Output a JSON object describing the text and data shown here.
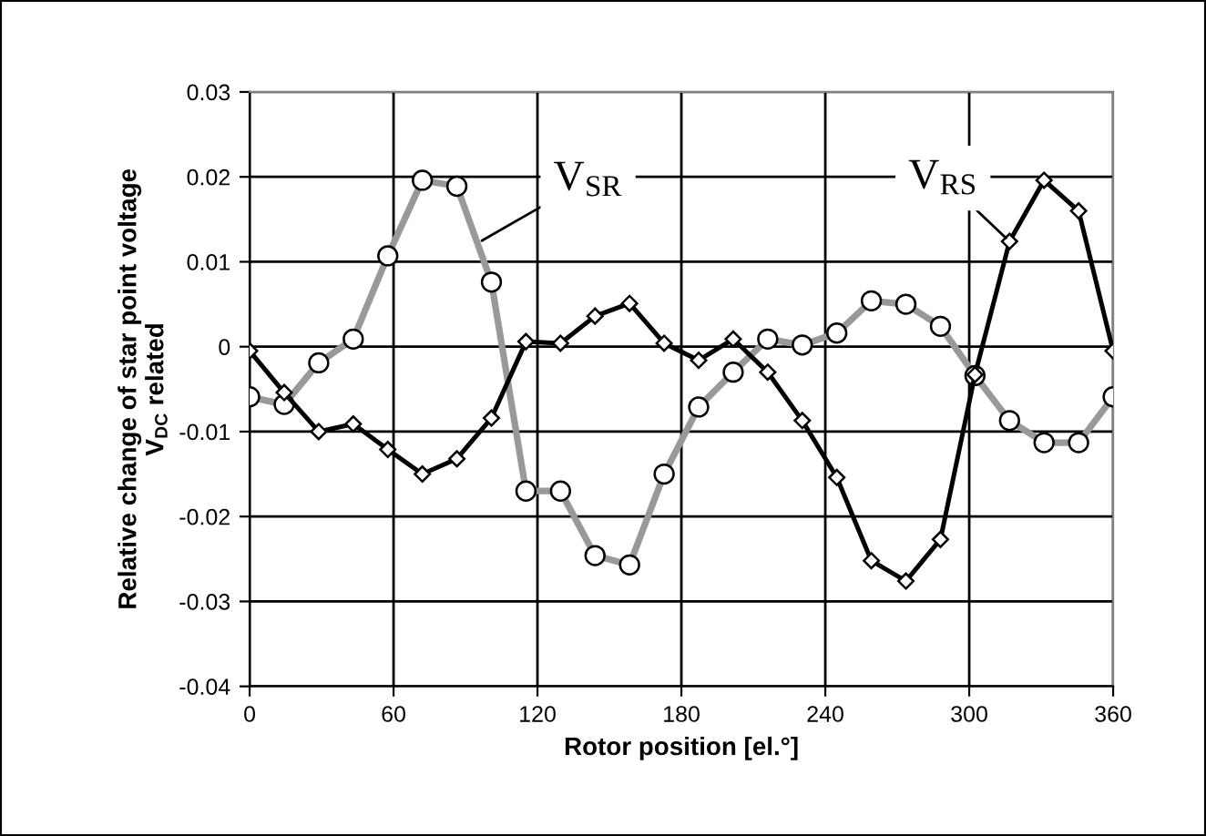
{
  "chart_data": {
    "type": "line",
    "xlabel": "Rotor position [el.°]",
    "ylabel": "Relative change of star point voltage\nV$_{DC}$ related",
    "xlim": [
      0,
      360
    ],
    "xticks": [
      0,
      60,
      120,
      180,
      240,
      300,
      360
    ],
    "ylim": [
      -0.04,
      0.03
    ],
    "yticks": [
      -0.04,
      -0.03,
      -0.02,
      -0.01,
      0,
      0.01,
      0.02,
      0.03
    ],
    "grid": true,
    "legend": false,
    "series": [
      {
        "color": "#999999",
        "marker": "circle",
        "x": [
          0,
          14.4,
          28.8,
          43.2,
          57.6,
          72,
          86.4,
          100.8,
          115.2,
          129.6,
          144,
          158.4,
          172.8,
          187.2,
          201.6,
          216,
          230.4,
          244.8,
          259.2,
          273.6,
          288,
          302.4,
          316.8,
          331.2,
          345.6,
          360
        ],
        "values": [
          -0.0059,
          -0.0068,
          -0.0019,
          0.0009,
          0.0107,
          0.0196,
          0.0189,
          0.0076,
          -0.017,
          -0.017,
          -0.0246,
          -0.0257,
          -0.015,
          -0.0071,
          -0.003,
          0.0009,
          0.0002,
          0.0016,
          0.0054,
          0.005,
          0.0024,
          -0.0034,
          -0.0087,
          -0.0113,
          -0.0113,
          -0.0059
        ]
      },
      {
        "color": "#000000",
        "marker": "diamond",
        "x": [
          0,
          14.4,
          28.8,
          43.2,
          57.6,
          72,
          86.4,
          100.8,
          115.2,
          129.6,
          144,
          158.4,
          172.8,
          187.2,
          201.6,
          216,
          230.4,
          244.8,
          259.2,
          273.6,
          288,
          302.4,
          316.8,
          331.2,
          345.6,
          360
        ],
        "values": [
          -0.0005,
          -0.0054,
          -0.01,
          -0.0091,
          -0.0121,
          -0.015,
          -0.0132,
          -0.0084,
          0.0006,
          0.0004,
          0.0036,
          0.0051,
          0.0004,
          -0.0016,
          0.0009,
          -0.003,
          -0.0087,
          -0.0154,
          -0.0252,
          -0.0276,
          -0.0227,
          -0.0033,
          0.0124,
          0.0196,
          0.016,
          -0.0005
        ]
      }
    ],
    "annotations": [
      {
        "text": "V$_{SR}$",
        "x": 95,
        "y": 0.0122
      },
      {
        "text": "V$_{RS}$",
        "x": 316.8,
        "y": 0.0124
      }
    ]
  }
}
